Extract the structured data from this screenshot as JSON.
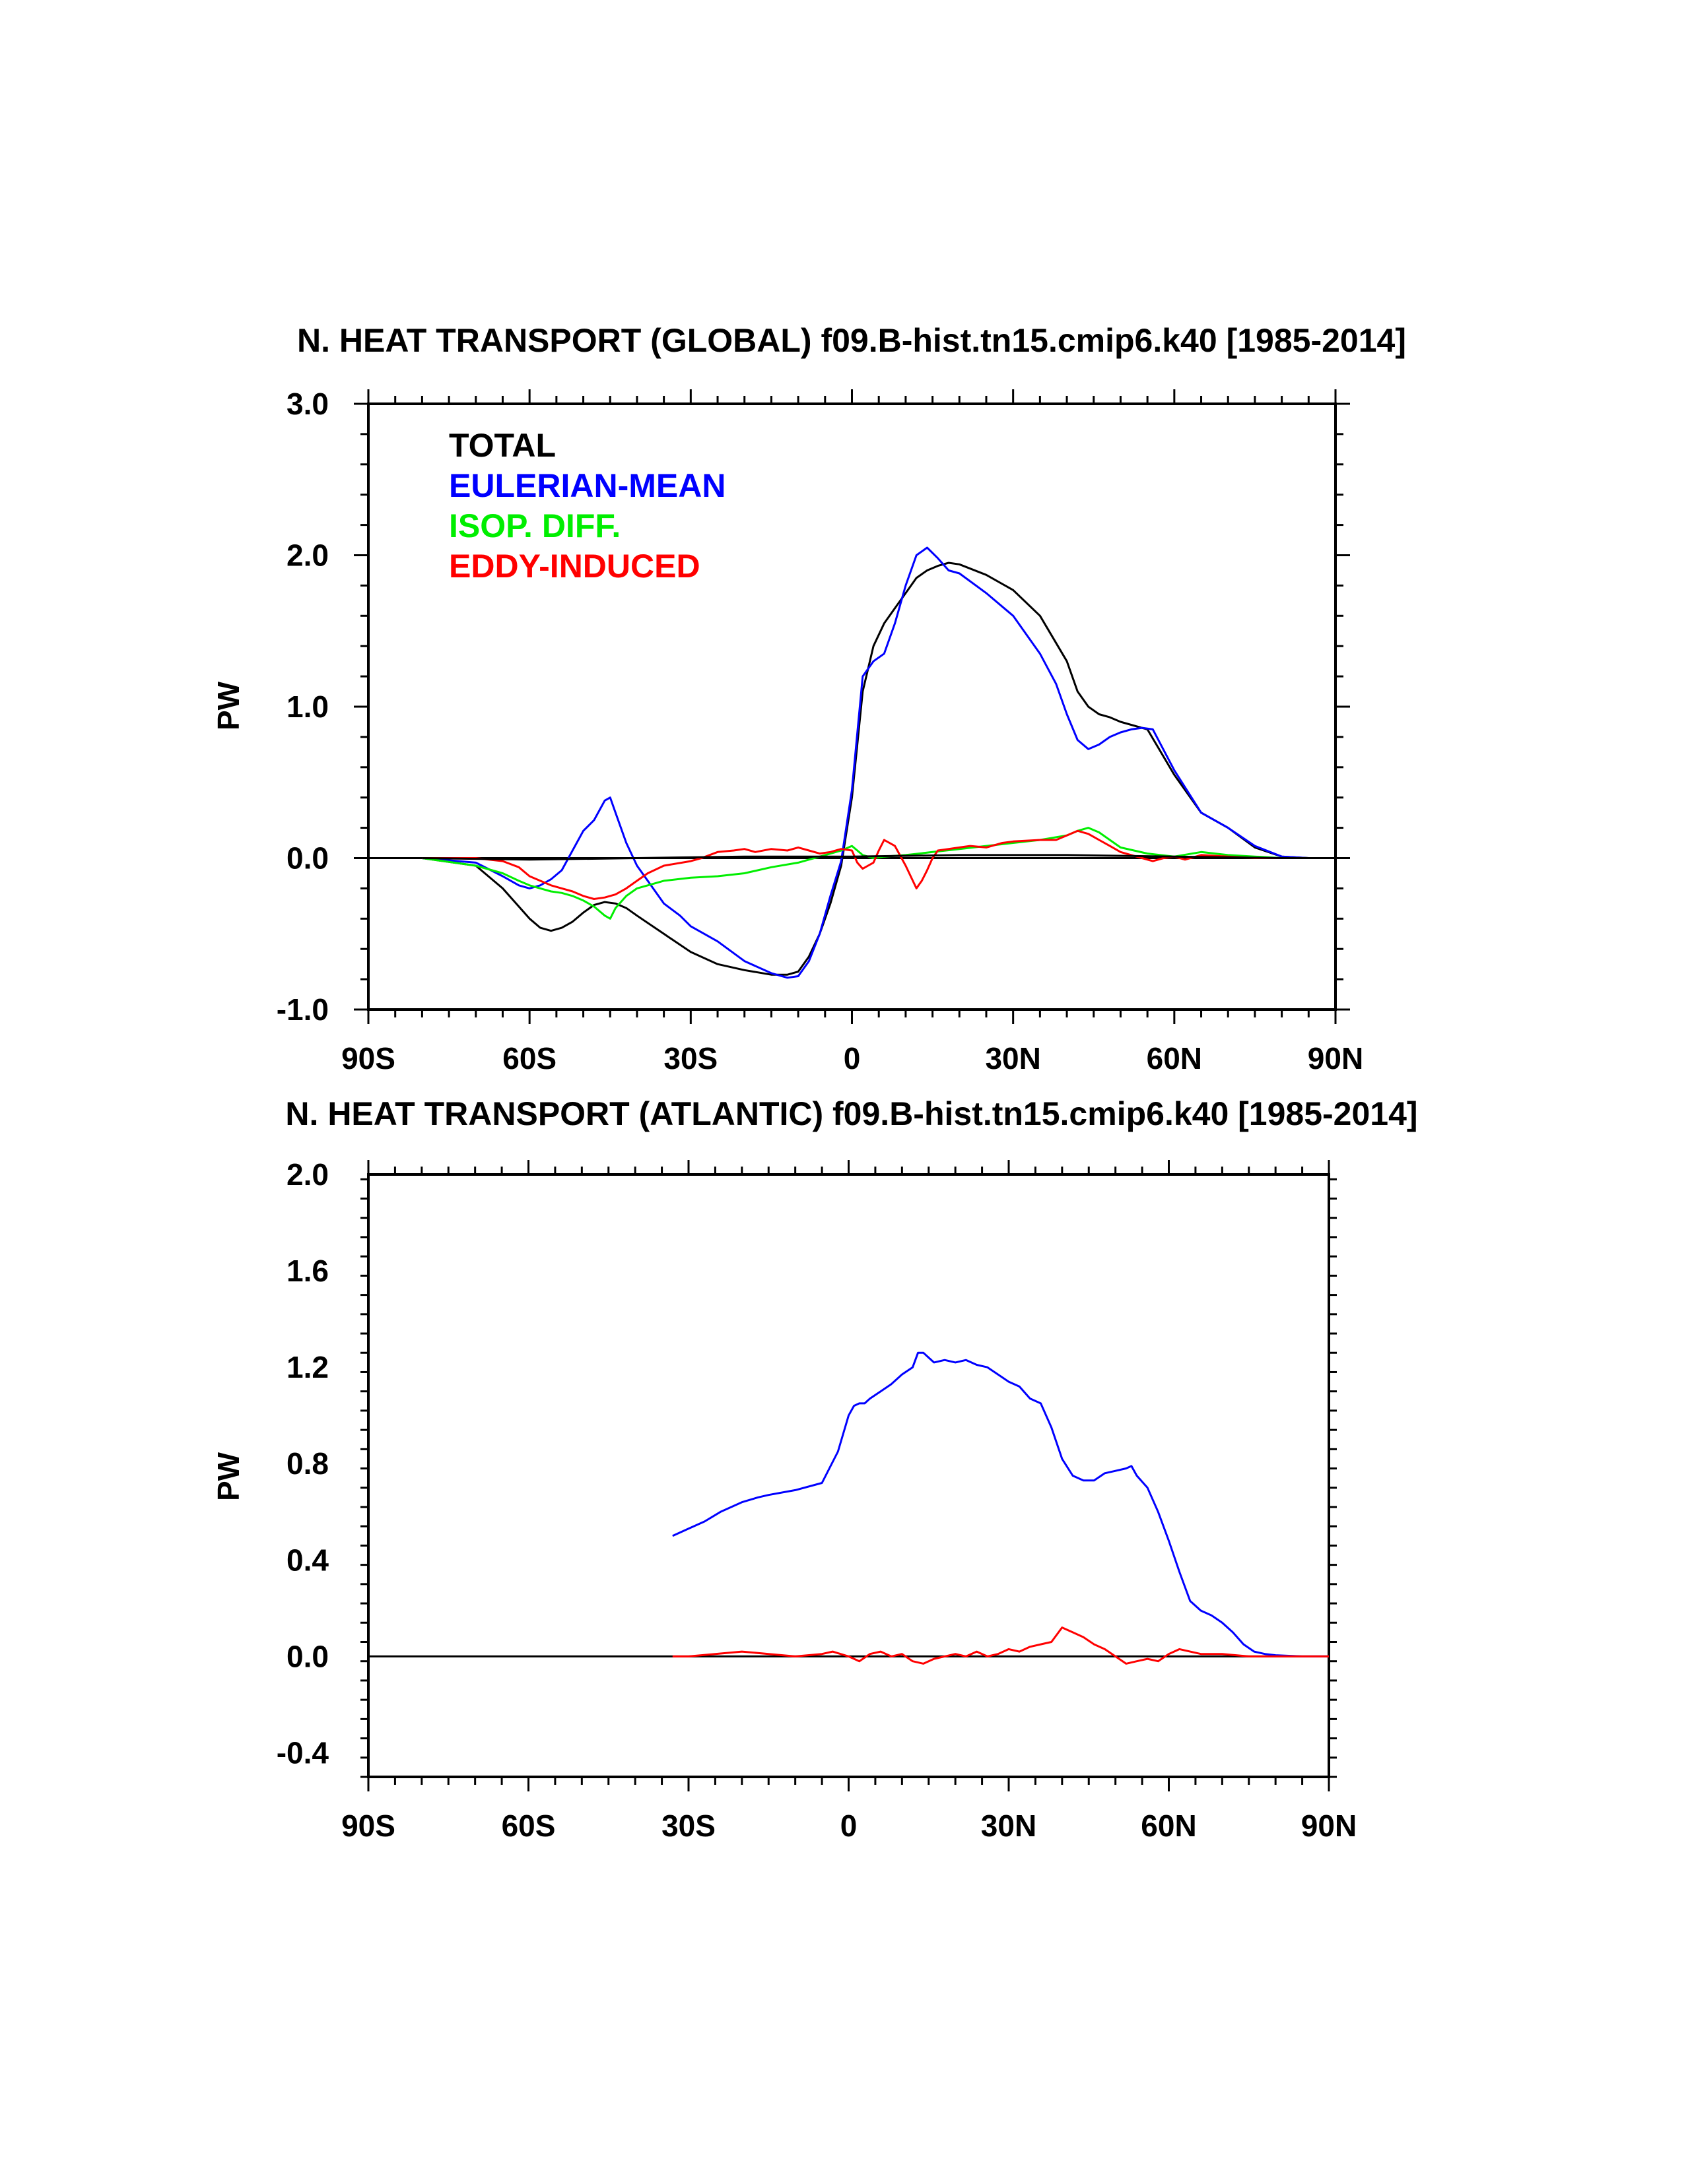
{
  "chart_data": [
    {
      "type": "line",
      "title": "N. HEAT TRANSPORT (GLOBAL) f09.B-hist.tn15.cmip6.k40 [1985-2014]",
      "xlabel": "",
      "ylabel": "PW",
      "xlim": [
        -90,
        90
      ],
      "ylim": [
        -1.0,
        3.0
      ],
      "xticks": [
        -90,
        -60,
        -30,
        0,
        30,
        60,
        90
      ],
      "xtick_labels": [
        "90S",
        "60S",
        "30S",
        "0",
        "30N",
        "60N",
        "90N"
      ],
      "yticks": [
        -1.0,
        0.0,
        1.0,
        2.0,
        3.0
      ],
      "ytick_labels": [
        "-1.0",
        "0.0",
        "1.0",
        "2.0",
        "3.0"
      ],
      "zero_line": true,
      "legend_position": "top-left",
      "series": [
        {
          "name": "TOTAL",
          "color": "#000000",
          "x": [
            -80,
            -70,
            -65,
            -62,
            -60,
            -58,
            -56,
            -54,
            -52,
            -50,
            -48,
            -46,
            -44,
            -42,
            -40,
            -35,
            -30,
            -25,
            -20,
            -15,
            -12,
            -10,
            -8,
            -6,
            -4,
            -2,
            0,
            2,
            4,
            6,
            8,
            10,
            12,
            14,
            16,
            18,
            20,
            25,
            30,
            35,
            40,
            42,
            44,
            46,
            48,
            50,
            55,
            60,
            65,
            70,
            75,
            80,
            85,
            90
          ],
          "y": [
            0,
            -0.05,
            -0.2,
            -0.32,
            -0.4,
            -0.46,
            -0.48,
            -0.46,
            -0.42,
            -0.36,
            -0.31,
            -0.29,
            -0.3,
            -0.33,
            -0.38,
            -0.5,
            -0.62,
            -0.7,
            -0.74,
            -0.77,
            -0.77,
            -0.75,
            -0.65,
            -0.5,
            -0.3,
            -0.05,
            0.4,
            1.1,
            1.4,
            1.55,
            1.65,
            1.75,
            1.85,
            1.9,
            1.93,
            1.95,
            1.94,
            1.87,
            1.77,
            1.6,
            1.3,
            1.1,
            1.0,
            0.95,
            0.93,
            0.9,
            0.85,
            0.55,
            0.3,
            0.2,
            0.07,
            0.01,
            0,
            0
          ]
        },
        {
          "name": "EULERIAN-MEAN",
          "color": "#0000ff",
          "x": [
            -80,
            -70,
            -65,
            -62,
            -60,
            -58,
            -56,
            -54,
            -52,
            -50,
            -48,
            -46,
            -45,
            -44,
            -42,
            -40,
            -38,
            -35,
            -32,
            -30,
            -25,
            -20,
            -15,
            -12,
            -10,
            -8,
            -6,
            -4,
            -2,
            0,
            2,
            4,
            6,
            8,
            10,
            12,
            14,
            16,
            18,
            20,
            25,
            30,
            35,
            38,
            40,
            42,
            44,
            46,
            48,
            50,
            52,
            54,
            56,
            60,
            65,
            70,
            75,
            80,
            85,
            90
          ],
          "y": [
            0,
            -0.03,
            -0.12,
            -0.18,
            -0.2,
            -0.18,
            -0.14,
            -0.08,
            0.05,
            0.18,
            0.25,
            0.38,
            0.4,
            0.3,
            0.1,
            -0.05,
            -0.15,
            -0.3,
            -0.38,
            -0.45,
            -0.55,
            -0.68,
            -0.76,
            -0.79,
            -0.78,
            -0.68,
            -0.5,
            -0.25,
            -0.02,
            0.45,
            1.2,
            1.3,
            1.35,
            1.55,
            1.8,
            2.0,
            2.05,
            1.98,
            1.9,
            1.88,
            1.75,
            1.6,
            1.35,
            1.15,
            0.95,
            0.78,
            0.72,
            0.75,
            0.8,
            0.83,
            0.85,
            0.86,
            0.85,
            0.58,
            0.3,
            0.2,
            0.08,
            0.01,
            0,
            0
          ]
        },
        {
          "name": "ISOP. DIFF.",
          "color": "#00ee00",
          "x": [
            -80,
            -70,
            -65,
            -62,
            -60,
            -58,
            -56,
            -54,
            -52,
            -50,
            -48,
            -46,
            -45,
            -44,
            -42,
            -40,
            -35,
            -30,
            -25,
            -20,
            -15,
            -10,
            -5,
            -2,
            0,
            2,
            4,
            6,
            10,
            15,
            20,
            25,
            30,
            35,
            40,
            42,
            44,
            46,
            48,
            50,
            55,
            60,
            65,
            70,
            75,
            80,
            90
          ],
          "y": [
            0,
            -0.05,
            -0.1,
            -0.15,
            -0.18,
            -0.2,
            -0.22,
            -0.23,
            -0.25,
            -0.28,
            -0.32,
            -0.38,
            -0.4,
            -0.33,
            -0.25,
            -0.2,
            -0.15,
            -0.13,
            -0.12,
            -0.1,
            -0.06,
            -0.03,
            0.02,
            0.05,
            0.08,
            0.02,
            0,
            0.01,
            0.02,
            0.04,
            0.06,
            0.08,
            0.1,
            0.12,
            0.15,
            0.18,
            0.2,
            0.17,
            0.12,
            0.07,
            0.03,
            0.01,
            0.04,
            0.02,
            0.01,
            0,
            0
          ]
        },
        {
          "name": "EDDY-INDUCED",
          "color": "#ff0000",
          "x": [
            -80,
            -70,
            -65,
            -62,
            -60,
            -58,
            -56,
            -54,
            -52,
            -50,
            -48,
            -46,
            -44,
            -42,
            -40,
            -38,
            -35,
            -30,
            -28,
            -25,
            -22,
            -20,
            -18,
            -15,
            -12,
            -10,
            -8,
            -6,
            -4,
            -2,
            0,
            1,
            2,
            3,
            4,
            5,
            6,
            8,
            10,
            12,
            13,
            14,
            15,
            16,
            18,
            20,
            22,
            25,
            28,
            30,
            35,
            38,
            40,
            42,
            44,
            46,
            48,
            50,
            52,
            54,
            56,
            58,
            60,
            62,
            65,
            70,
            75,
            80,
            90
          ],
          "y": [
            0,
            0,
            -0.02,
            -0.06,
            -0.12,
            -0.15,
            -0.18,
            -0.2,
            -0.22,
            -0.25,
            -0.27,
            -0.26,
            -0.24,
            -0.2,
            -0.15,
            -0.1,
            -0.05,
            -0.02,
            0.0,
            0.04,
            0.05,
            0.06,
            0.04,
            0.06,
            0.05,
            0.07,
            0.05,
            0.03,
            0.04,
            0.06,
            0.05,
            -0.03,
            -0.07,
            -0.05,
            -0.03,
            0.05,
            0.12,
            0.08,
            -0.05,
            -0.2,
            -0.15,
            -0.08,
            0.0,
            0.05,
            0.06,
            0.07,
            0.08,
            0.07,
            0.1,
            0.11,
            0.12,
            0.12,
            0.15,
            0.18,
            0.16,
            0.12,
            0.08,
            0.04,
            0.02,
            0.0,
            -0.02,
            0.0,
            0.01,
            -0.01,
            0.02,
            0.01,
            0.0,
            0.0,
            0
          ]
        },
        {
          "name": "",
          "color": "#000000",
          "x": [
            -80,
            -60,
            -40,
            -20,
            0,
            20,
            40,
            60,
            80,
            90
          ],
          "y": [
            0,
            -0.01,
            0.0,
            0.01,
            0.01,
            0.02,
            0.02,
            0.01,
            0.0,
            0
          ]
        }
      ]
    },
    {
      "type": "line",
      "title": "N. HEAT TRANSPORT (ATLANTIC) f09.B-hist.tn15.cmip6.k40 [1985-2014]",
      "xlabel": "",
      "ylabel": "PW",
      "xlim": [
        -90,
        90
      ],
      "ylim": [
        -0.5,
        2.0
      ],
      "xticks": [
        -90,
        -60,
        -30,
        0,
        30,
        60,
        90
      ],
      "xtick_labels": [
        "90S",
        "60S",
        "30S",
        "0",
        "30N",
        "60N",
        "90N"
      ],
      "yticks": [
        -0.4,
        0.0,
        0.4,
        0.8,
        1.2,
        1.6,
        2.0
      ],
      "ytick_labels": [
        "-0.4",
        "0.0",
        "0.4",
        "0.8",
        "1.2",
        "1.6",
        "2.0"
      ],
      "zero_line": true,
      "series": [
        {
          "name": "",
          "color": "#0000ff",
          "x": [
            -33,
            -30,
            -27,
            -24,
            -20,
            -17,
            -15,
            -10,
            -5,
            -2,
            0,
            1,
            2,
            3,
            4,
            6,
            8,
            10,
            12,
            13,
            14,
            15,
            16,
            18,
            20,
            22,
            24,
            26,
            28,
            30,
            32,
            34,
            36,
            38,
            40,
            42,
            44,
            46,
            48,
            50,
            52,
            53,
            54,
            56,
            58,
            60,
            62,
            64,
            66,
            68,
            70,
            72,
            74,
            76,
            78,
            80,
            85,
            90
          ],
          "y": [
            0.5,
            0.53,
            0.56,
            0.6,
            0.64,
            0.66,
            0.67,
            0.69,
            0.72,
            0.85,
            1.0,
            1.04,
            1.05,
            1.05,
            1.07,
            1.1,
            1.13,
            1.17,
            1.2,
            1.26,
            1.26,
            1.24,
            1.22,
            1.23,
            1.22,
            1.23,
            1.21,
            1.2,
            1.17,
            1.14,
            1.12,
            1.07,
            1.05,
            0.95,
            0.82,
            0.75,
            0.73,
            0.73,
            0.76,
            0.77,
            0.78,
            0.79,
            0.75,
            0.7,
            0.6,
            0.48,
            0.35,
            0.23,
            0.19,
            0.17,
            0.14,
            0.1,
            0.05,
            0.02,
            0.01,
            0.005,
            0,
            0
          ]
        },
        {
          "name": "",
          "color": "#ff0000",
          "x": [
            -33,
            -30,
            -25,
            -20,
            -15,
            -10,
            -5,
            -3,
            0,
            2,
            4,
            6,
            8,
            10,
            12,
            14,
            16,
            18,
            20,
            22,
            24,
            26,
            28,
            30,
            32,
            34,
            36,
            38,
            40,
            42,
            44,
            46,
            48,
            50,
            52,
            54,
            56,
            58,
            60,
            62,
            64,
            66,
            70,
            75,
            80,
            90
          ],
          "y": [
            0,
            0,
            0.01,
            0.02,
            0.01,
            0.0,
            0.01,
            0.02,
            0.0,
            -0.02,
            0.01,
            0.02,
            0.0,
            0.01,
            -0.02,
            -0.03,
            -0.01,
            0.0,
            0.01,
            0.0,
            0.02,
            0.0,
            0.01,
            0.03,
            0.02,
            0.04,
            0.05,
            0.06,
            0.12,
            0.1,
            0.08,
            0.05,
            0.03,
            0.0,
            -0.03,
            -0.02,
            -0.01,
            -0.02,
            0.01,
            0.03,
            0.02,
            0.01,
            0.01,
            0.0,
            0.0,
            0
          ]
        }
      ]
    }
  ],
  "legend": [
    {
      "label": "TOTAL",
      "color": "#000000"
    },
    {
      "label": "EULERIAN-MEAN",
      "color": "#0000ff"
    },
    {
      "label": "ISOP. DIFF.",
      "color": "#00ee00"
    },
    {
      "label": "EDDY-INDUCED",
      "color": "#ff0000"
    }
  ]
}
